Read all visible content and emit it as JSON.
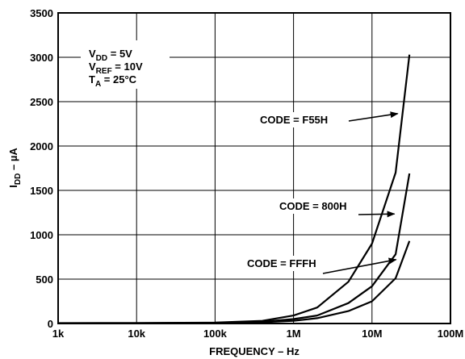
{
  "chart_data": {
    "type": "line",
    "title": "",
    "xlabel": "FREQUENCY – Hz",
    "ylabel": {
      "main": "I",
      "sub": "DD",
      "rest": " – µA"
    },
    "xscale": "log",
    "xlim": [
      1000,
      100000000
    ],
    "ylim": [
      0,
      3500
    ],
    "grid": true,
    "x_ticks": [
      {
        "value": 1000,
        "label": "1k"
      },
      {
        "value": 10000,
        "label": "10k"
      },
      {
        "value": 100000,
        "label": "100k"
      },
      {
        "value": 1000000,
        "label": "1M"
      },
      {
        "value": 10000000,
        "label": "10M"
      },
      {
        "value": 100000000,
        "label": "100M"
      }
    ],
    "y_ticks": [
      {
        "value": 0,
        "label": "0"
      },
      {
        "value": 500,
        "label": "500"
      },
      {
        "value": 1000,
        "label": "1000"
      },
      {
        "value": 1500,
        "label": "1500"
      },
      {
        "value": 2000,
        "label": "2000"
      },
      {
        "value": 2500,
        "label": "2500"
      },
      {
        "value": 3000,
        "label": "3000"
      },
      {
        "value": 3500,
        "label": "3500"
      }
    ],
    "conditions": [
      {
        "main": "V",
        "sub": "DD",
        "rest": " = 5V"
      },
      {
        "main": "V",
        "sub": "REF",
        "rest": " = 10V"
      },
      {
        "main": "T",
        "sub": "A",
        "rest": " = 25°C"
      }
    ],
    "series": [
      {
        "name": "CODE = F55H",
        "x": [
          1000,
          10000,
          100000,
          400000,
          1000000,
          2000000,
          5000000,
          10000000,
          20000000,
          30000000
        ],
        "y": [
          5,
          6,
          10,
          30,
          90,
          180,
          470,
          900,
          1700,
          3030
        ]
      },
      {
        "name": "CODE = 800H",
        "x": [
          1000,
          10000,
          100000,
          400000,
          1000000,
          2000000,
          5000000,
          10000000,
          20000000,
          30000000
        ],
        "y": [
          3,
          4,
          8,
          20,
          50,
          90,
          230,
          420,
          780,
          1690
        ]
      },
      {
        "name": "CODE = FFFH",
        "x": [
          1000,
          10000,
          100000,
          400000,
          1000000,
          2000000,
          5000000,
          10000000,
          20000000,
          30000000
        ],
        "y": [
          2,
          3,
          6,
          15,
          30,
          60,
          140,
          250,
          510,
          930
        ]
      }
    ]
  }
}
